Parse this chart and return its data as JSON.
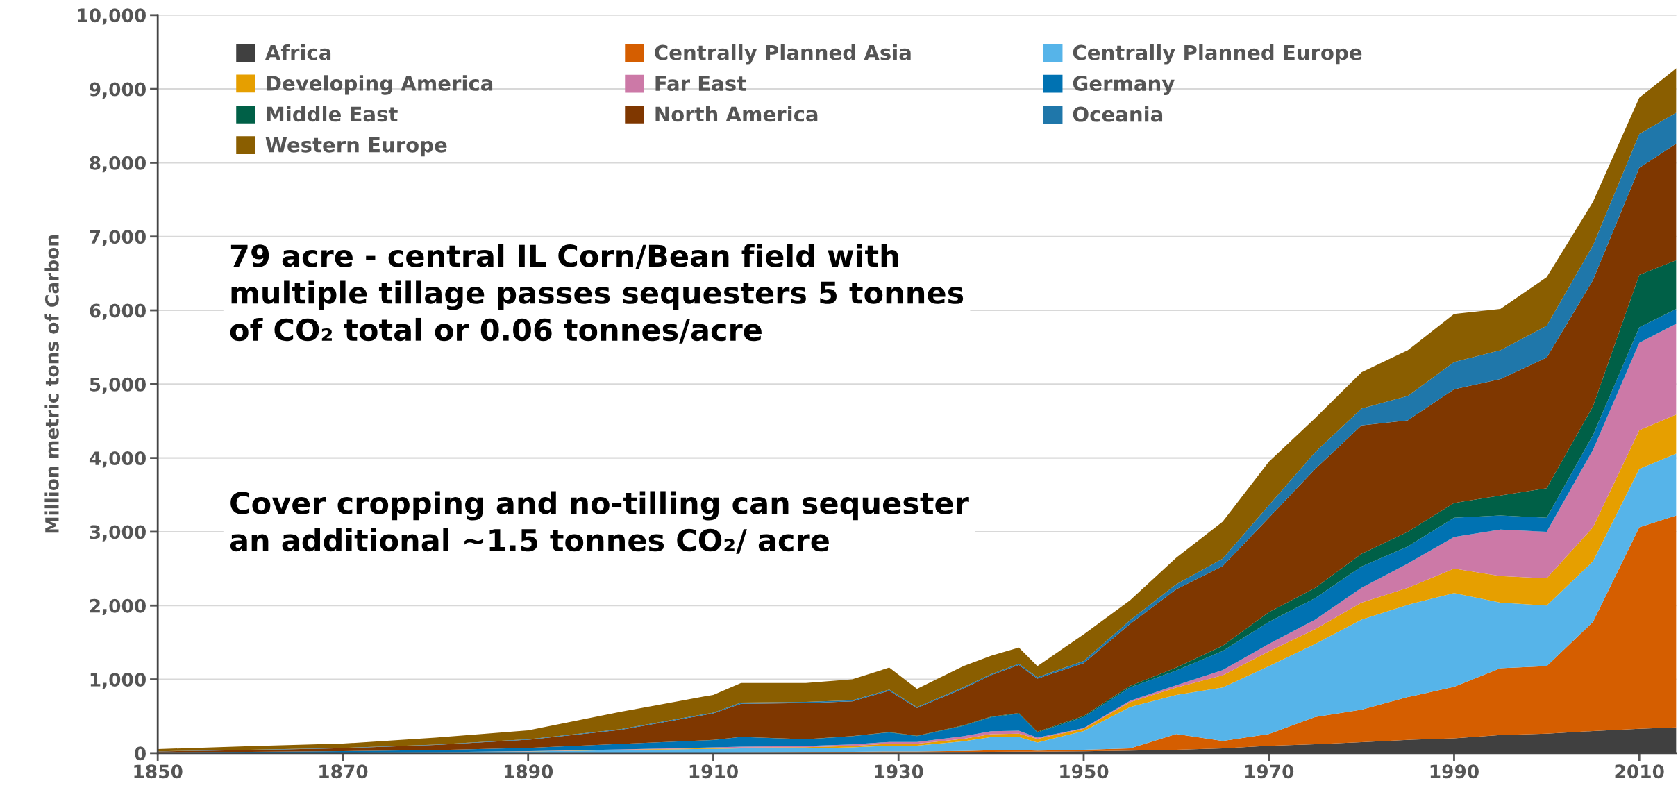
{
  "chart_data": {
    "type": "area",
    "stacked": true,
    "ylabel": "Million metric tons of Carbon",
    "x": [
      1850,
      1860,
      1870,
      1880,
      1890,
      1900,
      1910,
      1913,
      1920,
      1925,
      1929,
      1932,
      1937,
      1940,
      1943,
      1945,
      1950,
      1955,
      1960,
      1965,
      1970,
      1975,
      1980,
      1985,
      1990,
      1995,
      2000,
      2005,
      2010,
      2014
    ],
    "series": [
      {
        "name": "Africa",
        "color": "#404040",
        "values": [
          0,
          0,
          0,
          0,
          1,
          3,
          5,
          6,
          8,
          10,
          12,
          12,
          15,
          18,
          20,
          20,
          25,
          35,
          45,
          65,
          100,
          120,
          150,
          180,
          200,
          245,
          265,
          300,
          330,
          350
        ]
      },
      {
        "name": "Centrally Planned Asia",
        "color": "#d55e00",
        "values": [
          0,
          0,
          0,
          0,
          1,
          2,
          3,
          4,
          6,
          8,
          10,
          10,
          15,
          20,
          20,
          15,
          20,
          30,
          215,
          100,
          160,
          370,
          440,
          580,
          700,
          905,
          915,
          1480,
          2730,
          2870
        ]
      },
      {
        "name": "Centrally Planned Europe",
        "color": "#56b4e9",
        "values": [
          3,
          5,
          8,
          12,
          20,
          35,
          50,
          55,
          50,
          60,
          80,
          80,
          130,
          180,
          180,
          110,
          255,
          560,
          530,
          725,
          920,
          990,
          1220,
          1250,
          1270,
          890,
          820,
          820,
          790,
          840
        ]
      },
      {
        "name": "Developing America",
        "color": "#e69f00",
        "values": [
          0,
          0,
          0,
          0,
          2,
          5,
          10,
          12,
          18,
          20,
          25,
          25,
          35,
          40,
          45,
          50,
          30,
          65,
          100,
          165,
          200,
          200,
          230,
          230,
          330,
          360,
          370,
          460,
          525,
          530
        ]
      },
      {
        "name": "Far East",
        "color": "#cc79a7",
        "values": [
          0,
          0,
          0,
          0,
          3,
          5,
          10,
          12,
          15,
          20,
          25,
          25,
          35,
          40,
          40,
          15,
          10,
          20,
          30,
          70,
          100,
          130,
          200,
          330,
          430,
          630,
          630,
          1050,
          1185,
          1230
        ]
      },
      {
        "name": "Germany",
        "color": "#0072b2",
        "values": [
          8,
          12,
          20,
          30,
          45,
          75,
          100,
          130,
          90,
          110,
          130,
          80,
          140,
          190,
          230,
          70,
          150,
          180,
          200,
          260,
          300,
          290,
          290,
          230,
          260,
          190,
          190,
          200,
          210,
          200
        ]
      },
      {
        "name": "Middle East",
        "color": "#006047",
        "values": [
          0,
          0,
          0,
          0,
          0,
          0,
          1,
          1,
          2,
          3,
          4,
          5,
          7,
          8,
          10,
          10,
          15,
          20,
          40,
          70,
          130,
          140,
          170,
          200,
          200,
          270,
          400,
          390,
          710,
          660
        ]
      },
      {
        "name": "North America",
        "color": "#7f3700",
        "values": [
          12,
          25,
          40,
          70,
          110,
          190,
          360,
          450,
          490,
          470,
          560,
          375,
          500,
          560,
          650,
          720,
          715,
          840,
          1060,
          1080,
          1280,
          1610,
          1740,
          1510,
          1540,
          1580,
          1770,
          1710,
          1450,
          1580
        ]
      },
      {
        "name": "Oceania",
        "color": "#1f77aa",
        "values": [
          2,
          3,
          4,
          5,
          7,
          10,
          11,
          15,
          15,
          15,
          15,
          12,
          15,
          16,
          18,
          18,
          30,
          50,
          70,
          100,
          170,
          230,
          230,
          330,
          370,
          390,
          430,
          470,
          460,
          420
        ]
      },
      {
        "name": "Western Europe",
        "color": "#8a5e00",
        "values": [
          30,
          50,
          58,
          93,
          121,
          235,
          240,
          265,
          256,
          284,
          299,
          246,
          288,
          248,
          217,
          152,
          360,
          270,
          360,
          500,
          590,
          460,
          490,
          620,
          650,
          560,
          660,
          590,
          490,
          600
        ]
      }
    ],
    "xlim": [
      1850,
      2014
    ],
    "xticks": [
      1850,
      1870,
      1890,
      1910,
      1930,
      1950,
      1970,
      1990,
      2010
    ],
    "ylim": [
      0,
      10000
    ],
    "yticks": [
      0,
      {
        "value": 1000,
        "label": "1,000"
      },
      {
        "value": 2000,
        "label": "2,000"
      },
      {
        "value": 3000,
        "label": "3,000"
      },
      {
        "value": 4000,
        "label": "4,000"
      },
      {
        "value": 5000,
        "label": "5,000"
      },
      {
        "value": 6000,
        "label": "6,000"
      },
      {
        "value": 7000,
        "label": "7,000"
      },
      {
        "value": 8000,
        "label": "8,000"
      },
      {
        "value": 9000,
        "label": "9,000"
      },
      {
        "value": 10000,
        "label": "10,000"
      }
    ],
    "grid": "y",
    "legend": "top left",
    "annotations": [
      "79 acre - central IL Corn/Bean field with\nmultiple tillage passes sequesters 5 tonnes\nof CO₂ total or 0.06 tonnes/acre",
      "Cover cropping and no-tilling can sequester\nan additional ~1.5 tonnes CO₂/ acre"
    ]
  }
}
